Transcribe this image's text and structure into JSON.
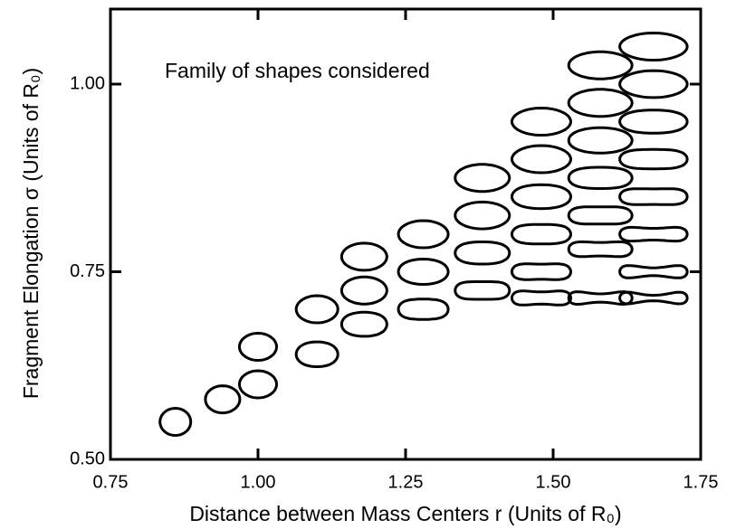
{
  "chart_data": {
    "type": "scatter",
    "annotation": "Family of shapes considered",
    "x_label": "Distance between Mass Centers r (Units of R₀)",
    "y_label": "Fragment Elongation σ (Units of R₀)",
    "xlim": [
      0.75,
      1.75
    ],
    "ylim": [
      0.5,
      1.1
    ],
    "xticks": [
      {
        "value": 0.75,
        "label": "0.75"
      },
      {
        "value": 1,
        "label": "1.00"
      },
      {
        "value": 1.25,
        "label": "1.25"
      },
      {
        "value": 1.5,
        "label": "1.50"
      },
      {
        "value": 1.75,
        "label": "1.75"
      }
    ],
    "yticks": [
      {
        "value": 0.5,
        "label": "0.50"
      },
      {
        "value": 0.75,
        "label": "0.75"
      },
      {
        "value": 1,
        "label": "1.00"
      }
    ],
    "color": "#000000",
    "x": [
      0.86,
      0.94,
      1.0,
      1.0,
      1.1,
      1.1,
      1.18,
      1.18,
      1.18,
      1.28,
      1.28,
      1.28,
      1.38,
      1.38,
      1.38,
      1.38,
      1.48,
      1.48,
      1.48,
      1.48,
      1.48,
      1.48,
      1.58,
      1.58,
      1.58,
      1.58,
      1.58,
      1.58,
      1.58,
      1.67,
      1.67,
      1.67,
      1.67,
      1.67,
      1.67,
      1.67,
      1.67
    ],
    "values": [
      0.55,
      0.58,
      0.6,
      0.65,
      0.64,
      0.7,
      0.68,
      0.725,
      0.77,
      0.7,
      0.75,
      0.8,
      0.725,
      0.775,
      0.825,
      0.875,
      0.715,
      0.75,
      0.8,
      0.85,
      0.9,
      0.95,
      0.715,
      0.78,
      0.825,
      0.875,
      0.925,
      0.975,
      1.025,
      0.715,
      0.75,
      0.8,
      0.85,
      0.9,
      0.95,
      1.0,
      1.05
    ]
  }
}
